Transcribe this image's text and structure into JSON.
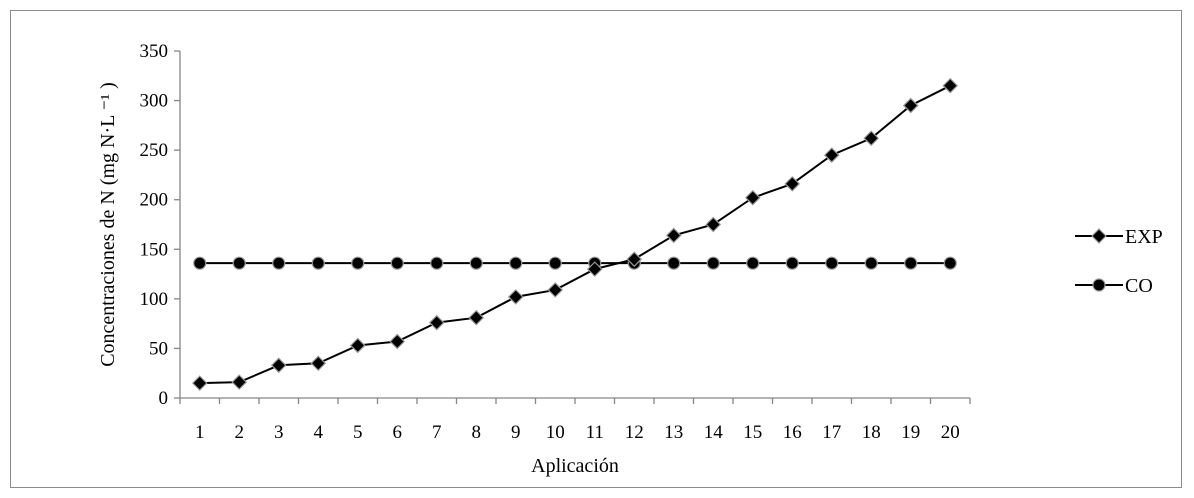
{
  "chart_data": {
    "type": "line",
    "title": "",
    "xlabel": "Aplicación",
    "ylabel": "Concentraciones de N (mg N·L ⁻¹ )",
    "categories": [
      "1",
      "2",
      "3",
      "4",
      "5",
      "6",
      "7",
      "8",
      "9",
      "10",
      "11",
      "12",
      "13",
      "14",
      "15",
      "16",
      "17",
      "18",
      "19",
      "20"
    ],
    "ylim": [
      0,
      350
    ],
    "yticks": [
      "0",
      "50",
      "100",
      "150",
      "200",
      "250",
      "300",
      "350"
    ],
    "grid": false,
    "legend": "right",
    "series": [
      {
        "name": "EXP",
        "marker": "diamond",
        "color": "#000000",
        "values": [
          15,
          16,
          33,
          35,
          53,
          57,
          76,
          81,
          102,
          109,
          130,
          140,
          164,
          175,
          202,
          216,
          245,
          262,
          295,
          315
        ]
      },
      {
        "name": "CO",
        "marker": "circle",
        "color": "#000000",
        "values": [
          136,
          136,
          136,
          136,
          136,
          136,
          136,
          136,
          136,
          136,
          136,
          136,
          136,
          136,
          136,
          136,
          136,
          136,
          136,
          136
        ]
      }
    ]
  }
}
